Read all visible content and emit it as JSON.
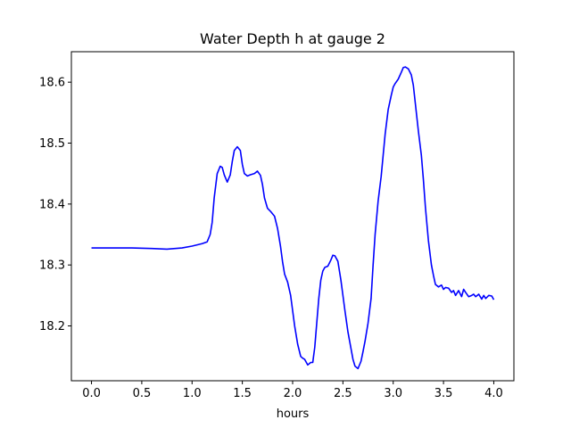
{
  "chart_data": {
    "type": "line",
    "title": "Water Depth h at gauge 2",
    "xlabel": "hours",
    "ylabel": "",
    "xlim": [
      -0.2,
      4.2
    ],
    "ylim": [
      18.11,
      18.65
    ],
    "xticks": [
      0.0,
      0.5,
      1.0,
      1.5,
      2.0,
      2.5,
      3.0,
      3.5,
      4.0
    ],
    "xtick_labels": [
      "0.0",
      "0.5",
      "1.0",
      "1.5",
      "2.0",
      "2.5",
      "3.0",
      "3.5",
      "4.0"
    ],
    "yticks": [
      18.2,
      18.3,
      18.4,
      18.5,
      18.6
    ],
    "ytick_labels": [
      "18.2",
      "18.3",
      "18.4",
      "18.5",
      "18.6"
    ],
    "grid": false,
    "line_color": "#0000ff",
    "series": [
      {
        "x": [
          0.0,
          0.2,
          0.4,
          0.6,
          0.75,
          0.9,
          1.0,
          1.05,
          1.1,
          1.15,
          1.18,
          1.2,
          1.22,
          1.25,
          1.28,
          1.3,
          1.32,
          1.35,
          1.38,
          1.4,
          1.42,
          1.45,
          1.48,
          1.5,
          1.52,
          1.55,
          1.58,
          1.62,
          1.65,
          1.68,
          1.7,
          1.72,
          1.75,
          1.78,
          1.82,
          1.85,
          1.88,
          1.9,
          1.92,
          1.95,
          1.98,
          2.0,
          2.02,
          2.05,
          2.08,
          2.1,
          2.12,
          2.15,
          2.18,
          2.2,
          2.22,
          2.24,
          2.26,
          2.28,
          2.3,
          2.32,
          2.35,
          2.38,
          2.4,
          2.42,
          2.45,
          2.48,
          2.5,
          2.52,
          2.55,
          2.58,
          2.6,
          2.62,
          2.65,
          2.68,
          2.7,
          2.72,
          2.75,
          2.78,
          2.8,
          2.82,
          2.85,
          2.88,
          2.9,
          2.92,
          2.95,
          2.98,
          3.0,
          3.02,
          3.05,
          3.08,
          3.1,
          3.12,
          3.15,
          3.18,
          3.2,
          3.22,
          3.25,
          3.28,
          3.3,
          3.32,
          3.35,
          3.38,
          3.4,
          3.42,
          3.45,
          3.48,
          3.5,
          3.52,
          3.55,
          3.58,
          3.6,
          3.62,
          3.65,
          3.68,
          3.7,
          3.72,
          3.75,
          3.78,
          3.8,
          3.82,
          3.85,
          3.88,
          3.9,
          3.92,
          3.95,
          3.98,
          4.0
        ],
        "y": [
          18.328,
          18.328,
          18.328,
          18.327,
          18.326,
          18.328,
          18.331,
          18.333,
          18.335,
          18.338,
          18.35,
          18.37,
          18.41,
          18.45,
          18.462,
          18.46,
          18.448,
          18.436,
          18.448,
          18.47,
          18.488,
          18.494,
          18.488,
          18.465,
          18.45,
          18.446,
          18.448,
          18.45,
          18.454,
          18.447,
          18.432,
          18.41,
          18.393,
          18.388,
          18.38,
          18.36,
          18.33,
          18.305,
          18.285,
          18.272,
          18.25,
          18.225,
          18.2,
          18.17,
          18.15,
          18.147,
          18.145,
          18.136,
          18.14,
          18.14,
          18.165,
          18.205,
          18.245,
          18.275,
          18.29,
          18.296,
          18.298,
          18.308,
          18.316,
          18.315,
          18.306,
          18.275,
          18.25,
          18.225,
          18.19,
          18.163,
          18.145,
          18.134,
          18.13,
          18.142,
          18.158,
          18.175,
          18.205,
          18.245,
          18.3,
          18.35,
          18.405,
          18.445,
          18.48,
          18.515,
          18.555,
          18.578,
          18.592,
          18.598,
          18.605,
          18.616,
          18.624,
          18.625,
          18.622,
          18.612,
          18.595,
          18.565,
          18.52,
          18.48,
          18.44,
          18.395,
          18.34,
          18.3,
          18.283,
          18.268,
          18.264,
          18.267,
          18.26,
          18.263,
          18.262,
          18.255,
          18.258,
          18.25,
          18.258,
          18.248,
          18.26,
          18.255,
          18.248,
          18.25,
          18.252,
          18.248,
          18.252,
          18.244,
          18.25,
          18.245,
          18.25,
          18.249,
          18.243
        ]
      }
    ]
  }
}
